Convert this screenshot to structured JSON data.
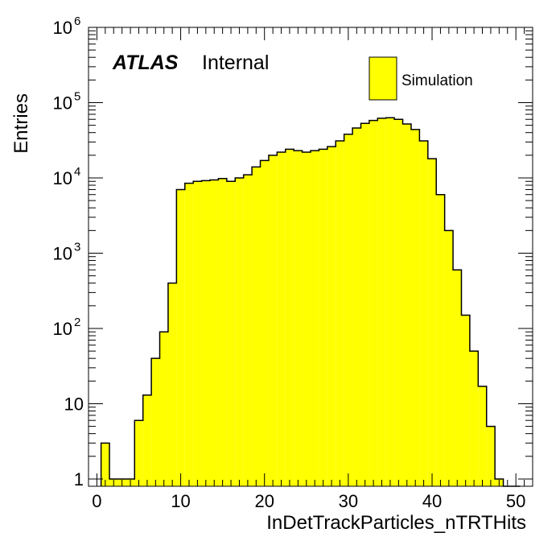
{
  "chart_data": {
    "type": "bar",
    "style": "histogram",
    "xlabel": "InDetTrackParticles_nTRTHits",
    "ylabel": "Entries",
    "xlim": [
      -1,
      52
    ],
    "ylim": [
      0.8,
      1000000
    ],
    "yscale": "log",
    "grid": false,
    "x_ticks": [
      "0",
      "10",
      "20",
      "30",
      "40",
      "50"
    ],
    "x_tick_values": [
      0,
      10,
      20,
      30,
      40,
      50
    ],
    "y_ticks": [
      {
        "value": 1,
        "base": "1",
        "exp": ""
      },
      {
        "value": 10,
        "base": "10",
        "exp": ""
      },
      {
        "value": 100,
        "base": "10",
        "exp": "2"
      },
      {
        "value": 1000,
        "base": "10",
        "exp": "3"
      },
      {
        "value": 10000,
        "base": "10",
        "exp": "4"
      },
      {
        "value": 100000,
        "base": "10",
        "exp": "5"
      },
      {
        "value": 1000000,
        "base": "10",
        "exp": "6"
      }
    ],
    "fill_color": "#ffff00",
    "line_color": "#000000",
    "bin_edges_start": 0.5,
    "bin_width": 1,
    "series": [
      {
        "name": "Simulation",
        "values": [
          3,
          1,
          1,
          1,
          6,
          13,
          40,
          90,
          400,
          7000,
          8500,
          9000,
          9200,
          9400,
          9800,
          9000,
          10000,
          11000,
          14000,
          17000,
          20000,
          22000,
          24000,
          23000,
          22000,
          23000,
          24000,
          26000,
          31000,
          38000,
          46000,
          53000,
          58000,
          62000,
          63000,
          60000,
          52000,
          44000,
          31000,
          18000,
          6000,
          2000,
          600,
          150,
          50,
          17,
          5,
          1,
          0.8,
          0.8
        ]
      }
    ],
    "legend": {
      "position": "top-right",
      "entries": [
        "Simulation"
      ]
    },
    "annotation": {
      "atlas": "ATLAS",
      "status": "Internal"
    }
  }
}
